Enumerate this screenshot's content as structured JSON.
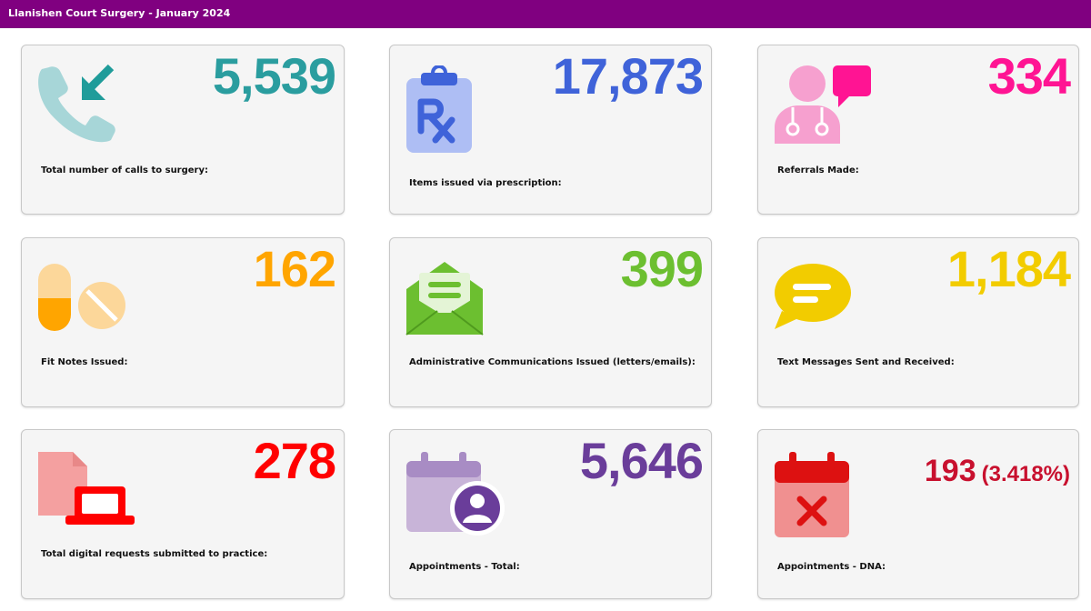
{
  "header": {
    "title": "Llanishen Court Surgery - January 2024"
  },
  "cards": [
    {
      "value": "5,539",
      "label": "Total number of calls to surgery:",
      "color": "#2a9d9f",
      "icon": "incoming-call-icon"
    },
    {
      "value": "17,873",
      "label": "Items issued via prescription:",
      "color": "#3f63d9",
      "icon": "prescription-icon"
    },
    {
      "value": "334",
      "label": "Referrals Made:",
      "color": "#ff1493",
      "icon": "doctor-referral-icon"
    },
    {
      "value": "162",
      "label": "Fit Notes Issued:",
      "color": "#ffa500",
      "icon": "pills-icon"
    },
    {
      "value": "399",
      "label": "Administrative Communications Issued (letters/emails):",
      "color": "#6cbf30",
      "icon": "open-envelope-icon"
    },
    {
      "value": "1,184",
      "label": "Text Messages Sent and Received:",
      "color": "#f2cc00",
      "icon": "chat-bubble-icon"
    },
    {
      "value": "278",
      "label": "Total digital requests submitted to practice:",
      "color": "#ff0000",
      "icon": "digital-request-icon"
    },
    {
      "value": "5,646",
      "label": "Appointments - Total:",
      "color": "#6a3d9a",
      "icon": "calendar-user-icon"
    },
    {
      "value": "193",
      "value_pct": "(3.418%)",
      "label": "Appointments - DNA:",
      "color": "#c8102e",
      "icon": "calendar-cancel-icon"
    }
  ]
}
